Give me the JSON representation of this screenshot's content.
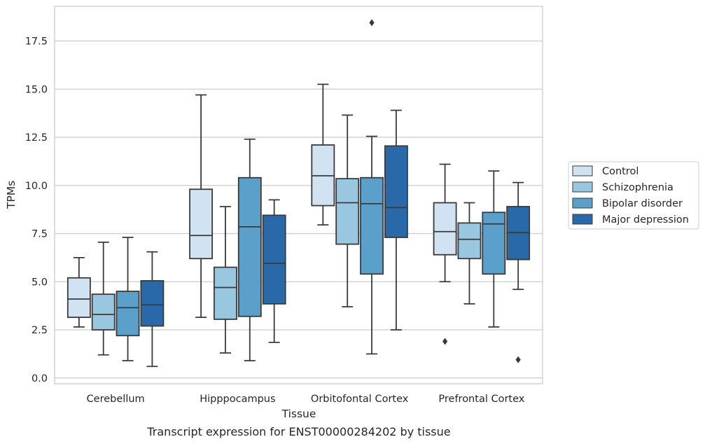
{
  "chart_data": {
    "type": "box",
    "xlabel": "Tissue",
    "ylabel": "TPMs",
    "caption": "Transcript expression for ENST00000284202 by tissue",
    "ylim": [
      -0.3,
      19.3
    ],
    "yticks": [
      "0.0",
      "2.5",
      "5.0",
      "7.5",
      "10.0",
      "12.5",
      "15.0",
      "17.5"
    ],
    "grid": "horizontal",
    "legend_position": "right",
    "categories": [
      "Cerebellum",
      "Hipppocampus",
      "Orbitofontal Cortex",
      "Prefrontal Cortex"
    ],
    "series": [
      {
        "name": "Control",
        "color": "#d1e2f2",
        "boxes": [
          {
            "whisker_low": 2.65,
            "q1": 3.15,
            "median": 4.1,
            "q3": 5.2,
            "whisker_high": 6.25,
            "outliers": []
          },
          {
            "whisker_low": 3.15,
            "q1": 6.2,
            "median": 7.4,
            "q3": 9.8,
            "whisker_high": 14.7,
            "outliers": []
          },
          {
            "whisker_low": 7.95,
            "q1": 8.95,
            "median": 10.5,
            "q3": 12.1,
            "whisker_high": 15.25,
            "outliers": []
          },
          {
            "whisker_low": 5.0,
            "q1": 6.4,
            "median": 7.6,
            "q3": 9.1,
            "whisker_high": 11.1,
            "outliers": [
              1.9
            ]
          }
        ]
      },
      {
        "name": "Schizophrenia",
        "color": "#9ac7e0",
        "boxes": [
          {
            "whisker_low": 1.2,
            "q1": 2.5,
            "median": 3.3,
            "q3": 4.35,
            "whisker_high": 7.05,
            "outliers": []
          },
          {
            "whisker_low": 1.3,
            "q1": 3.05,
            "median": 4.7,
            "q3": 5.75,
            "whisker_high": 8.9,
            "outliers": []
          },
          {
            "whisker_low": 3.7,
            "q1": 6.95,
            "median": 9.1,
            "q3": 10.35,
            "whisker_high": 13.65,
            "outliers": []
          },
          {
            "whisker_low": 3.85,
            "q1": 6.2,
            "median": 7.2,
            "q3": 8.05,
            "whisker_high": 9.1,
            "outliers": []
          }
        ]
      },
      {
        "name": "Bipolar disorder",
        "color": "#5b9fcb",
        "boxes": [
          {
            "whisker_low": 0.9,
            "q1": 2.2,
            "median": 3.65,
            "q3": 4.5,
            "whisker_high": 7.3,
            "outliers": []
          },
          {
            "whisker_low": 0.9,
            "q1": 3.2,
            "median": 7.85,
            "q3": 10.4,
            "whisker_high": 12.4,
            "outliers": []
          },
          {
            "whisker_low": 1.25,
            "q1": 5.4,
            "median": 9.05,
            "q3": 10.4,
            "whisker_high": 12.55,
            "outliers": [
              18.45
            ]
          },
          {
            "whisker_low": 2.65,
            "q1": 5.4,
            "median": 8.0,
            "q3": 8.6,
            "whisker_high": 10.75,
            "outliers": []
          }
        ]
      },
      {
        "name": "Major depression",
        "color": "#2a69a9",
        "boxes": [
          {
            "whisker_low": 0.6,
            "q1": 2.7,
            "median": 3.8,
            "q3": 5.05,
            "whisker_high": 6.55,
            "outliers": []
          },
          {
            "whisker_low": 1.85,
            "q1": 3.85,
            "median": 5.95,
            "q3": 8.45,
            "whisker_high": 9.25,
            "outliers": []
          },
          {
            "whisker_low": 2.5,
            "q1": 7.3,
            "median": 8.85,
            "q3": 12.05,
            "whisker_high": 13.9,
            "outliers": []
          },
          {
            "whisker_low": 4.6,
            "q1": 6.15,
            "median": 7.55,
            "q3": 8.9,
            "whisker_high": 10.15,
            "outliers": [
              0.95
            ]
          }
        ]
      }
    ]
  }
}
